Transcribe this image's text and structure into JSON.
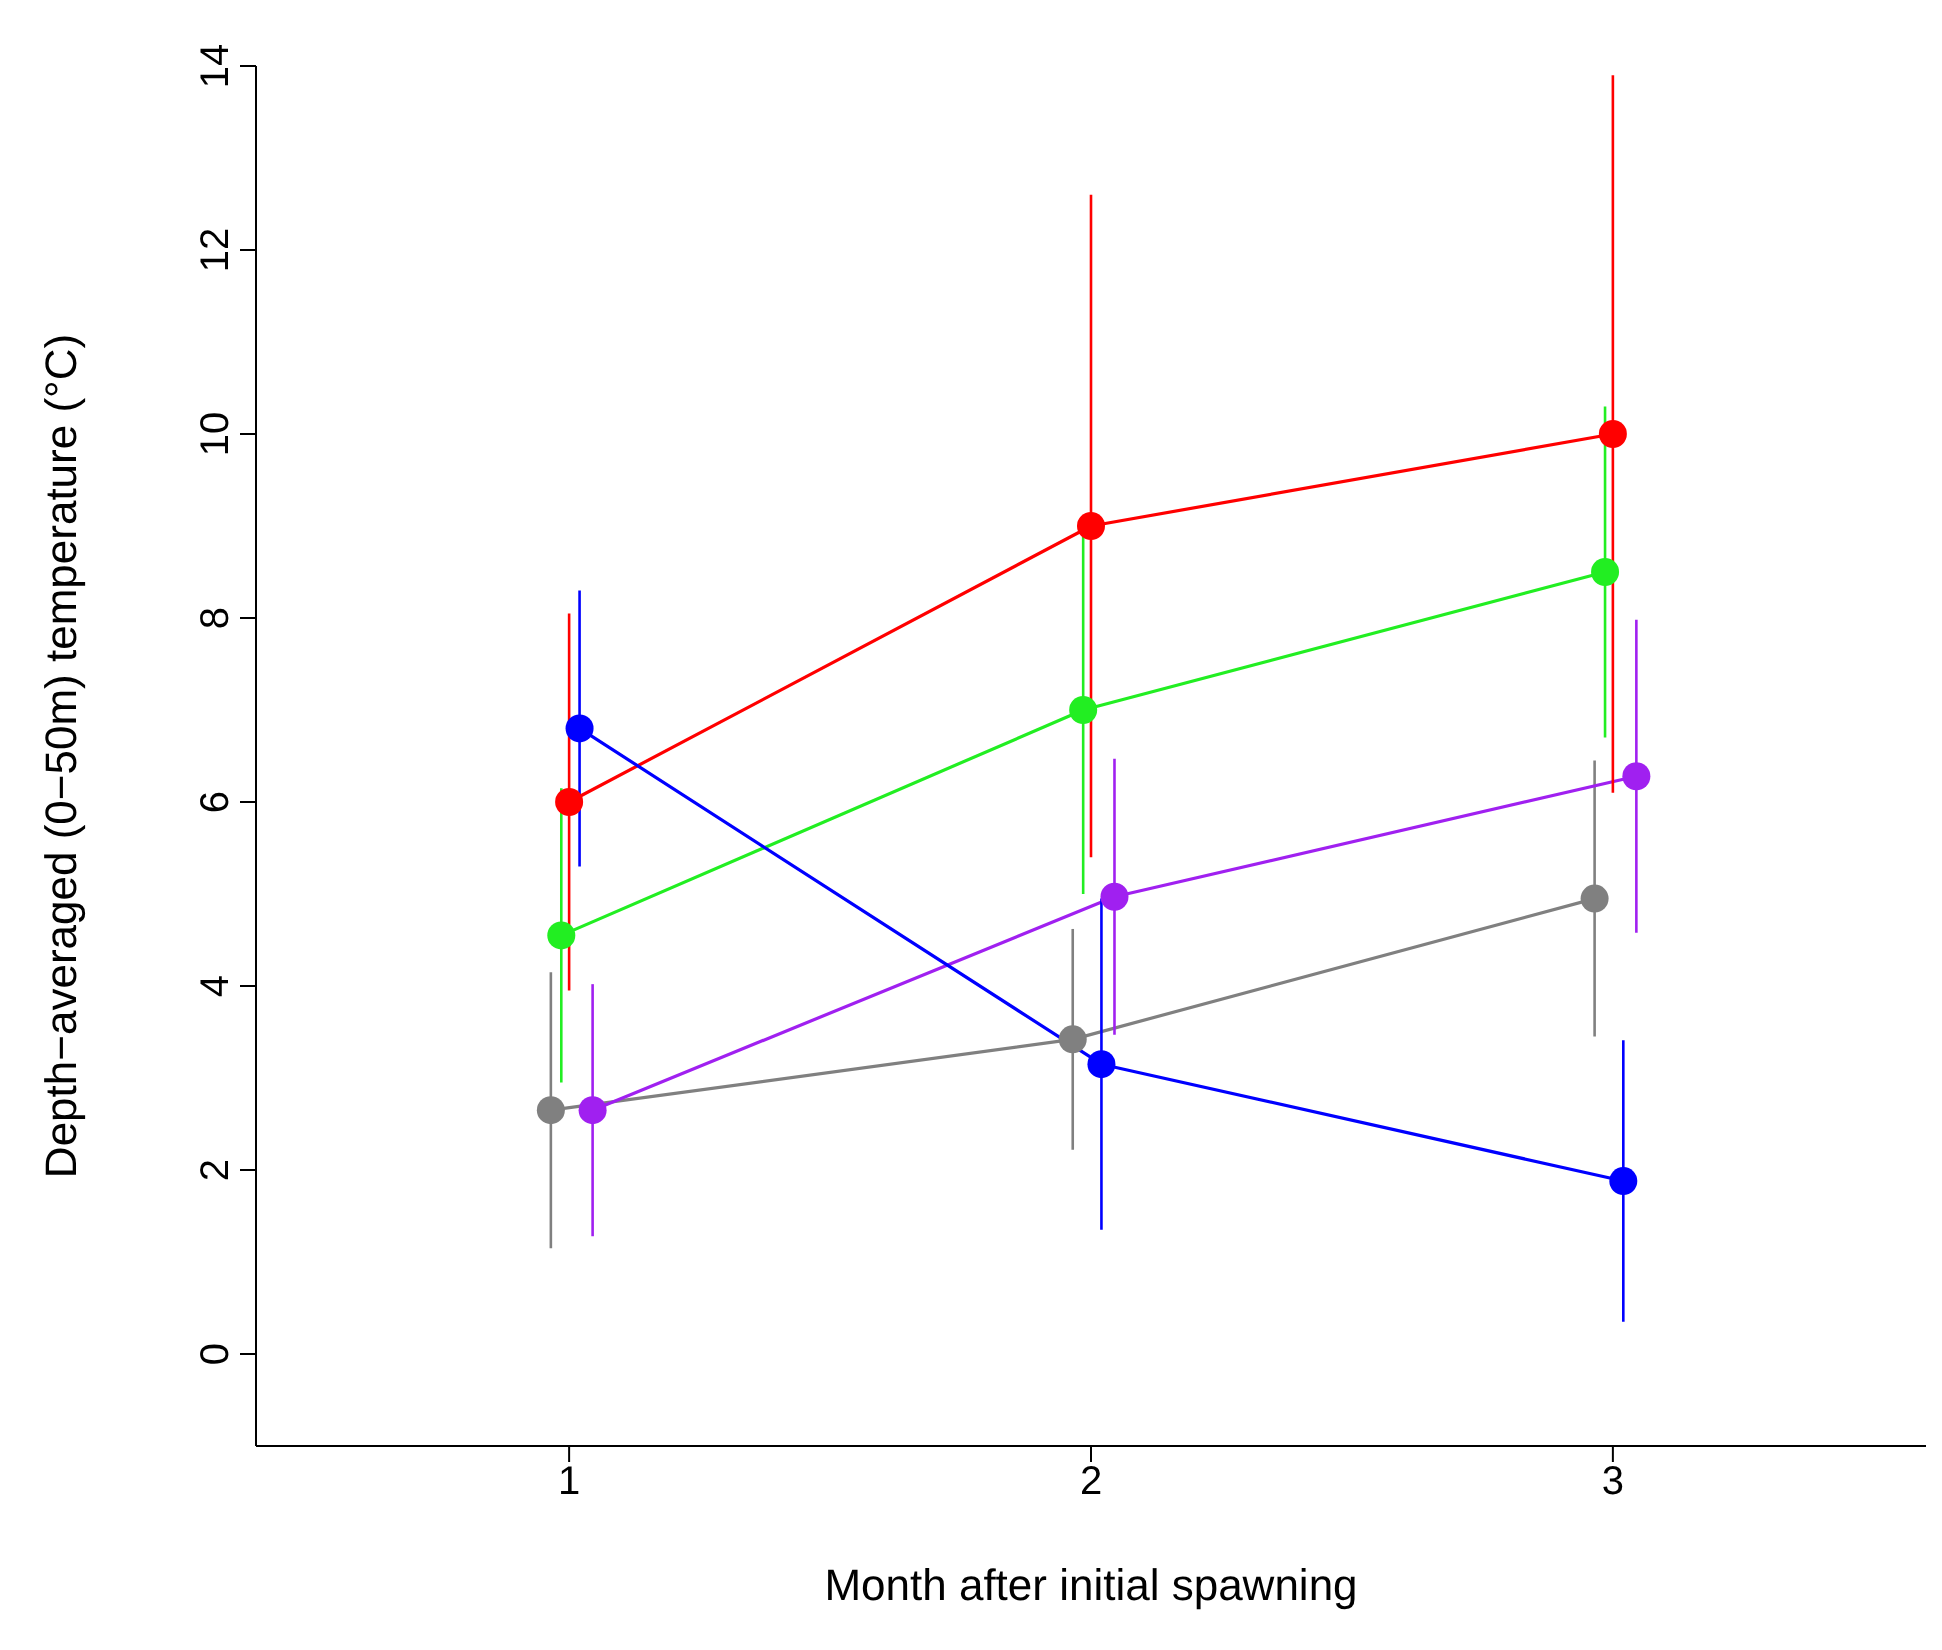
{
  "chart_data": {
    "type": "line",
    "xlabel": "Month after initial spawning",
    "ylabel": "Depth−averaged (0−50m) temperature (°C)",
    "xlim": [
      0.4,
      3.6
    ],
    "xticks": [
      1,
      2,
      3
    ],
    "ylim": [
      -1,
      14
    ],
    "yticks": [
      0,
      2,
      4,
      6,
      8,
      10,
      12,
      14
    ],
    "grid": false,
    "legend": false,
    "marker": "circle",
    "line_style": "solid",
    "series": [
      {
        "color": "#808080",
        "x": [
          0.965,
          1.965,
          2.965
        ],
        "values": [
          2.65,
          3.42,
          4.95
        ],
        "errors": [
          1.5,
          1.2,
          1.5
        ]
      },
      {
        "color": "#a020f0",
        "x": [
          1.045,
          2.045,
          3.045
        ],
        "values": [
          2.65,
          4.97,
          6.28
        ],
        "errors": [
          1.37,
          1.5,
          1.7
        ]
      },
      {
        "color": "#22ee22",
        "x": [
          0.985,
          1.985,
          2.985
        ],
        "values": [
          4.55,
          7.0,
          8.5
        ],
        "errors": [
          1.6,
          2.0,
          1.8
        ]
      },
      {
        "color": "#ff0000",
        "x": [
          1.0,
          2.0,
          3.0
        ],
        "values": [
          6.0,
          9.0,
          10.0
        ],
        "errors": [
          2.05,
          3.6,
          3.9
        ]
      },
      {
        "color": "#0000ff",
        "x": [
          1.02,
          2.02,
          3.02
        ],
        "values": [
          6.8,
          3.15,
          1.88
        ],
        "errors": [
          1.5,
          1.8,
          1.53
        ]
      }
    ]
  }
}
